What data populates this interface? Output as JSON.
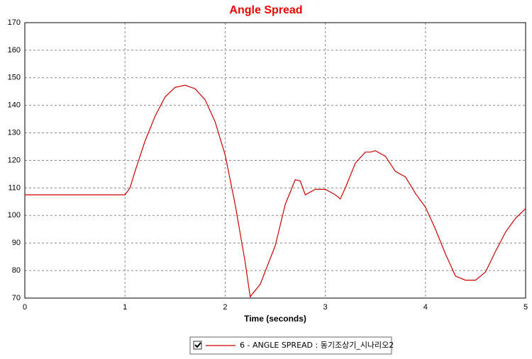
{
  "chart_data": {
    "type": "line",
    "title": "Angle Spread",
    "x_label": "Time (seconds)",
    "xlim": [
      0,
      5
    ],
    "xticks": [
      0,
      1,
      2,
      3,
      4,
      5
    ],
    "ylim": [
      70,
      170
    ],
    "yticks": [
      70,
      80,
      90,
      100,
      110,
      120,
      130,
      140,
      150,
      160,
      170
    ],
    "grid": true,
    "legend_position": "bottom",
    "series": [
      {
        "name": "6 - ANGLE SPREAD : 동기조상기_시나리오2",
        "color": "#cc0000",
        "x": [
          0,
          1.0,
          1.05,
          1.1,
          1.2,
          1.3,
          1.4,
          1.5,
          1.6,
          1.7,
          1.8,
          1.9,
          2.0,
          2.1,
          2.2,
          2.25,
          2.35,
          2.5,
          2.6,
          2.7,
          2.75,
          2.8,
          2.9,
          3.0,
          3.1,
          3.15,
          3.2,
          3.3,
          3.4,
          3.45,
          3.5,
          3.6,
          3.7,
          3.8,
          3.9,
          4.0,
          4.1,
          4.2,
          4.3,
          4.4,
          4.5,
          4.6,
          4.7,
          4.8,
          4.9,
          5.0
        ],
        "values": [
          107.5,
          107.5,
          110,
          116,
          127,
          136,
          143,
          146.5,
          147.3,
          146,
          142,
          134,
          122,
          104,
          83,
          70.5,
          75,
          89,
          104,
          113,
          112.5,
          107.5,
          109.5,
          109.5,
          107.5,
          106,
          110,
          119,
          123,
          123,
          123.5,
          121.5,
          116,
          114,
          108,
          103,
          95,
          86,
          78,
          76.5,
          76.5,
          79.5,
          87,
          94,
          99,
          102.5
        ]
      }
    ]
  }
}
